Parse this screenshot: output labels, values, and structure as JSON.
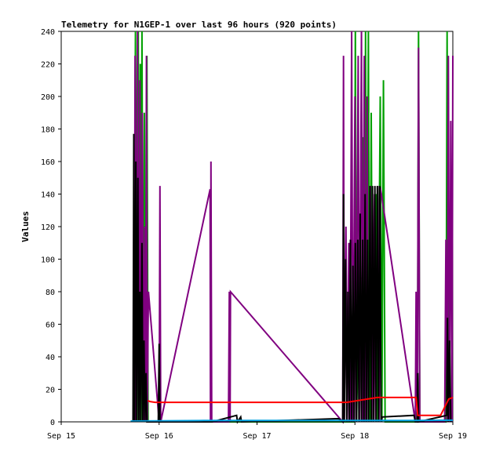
{
  "chart_data": {
    "type": "line",
    "title": "Telemetry for N1GEP-1 over last 96 hours (920 points)",
    "xlabel": "",
    "ylabel": "Values",
    "ylim": [
      0,
      240
    ],
    "yticks": [
      0,
      20,
      40,
      60,
      80,
      100,
      120,
      140,
      160,
      180,
      200,
      220,
      240
    ],
    "xlim": [
      0,
      96
    ],
    "xunit": "hours since Sep 15 00:00",
    "xticks": [
      {
        "x": 0,
        "label": "Sep 15"
      },
      {
        "x": 24,
        "label": "Sep 16"
      },
      {
        "x": 48,
        "label": "Sep 17"
      },
      {
        "x": 72,
        "label": "Sep 18"
      },
      {
        "x": 96,
        "label": "Sep 19"
      }
    ],
    "grid": false,
    "series": [
      {
        "color": "#00a000",
        "points": [
          [
            17.8,
            0
          ],
          [
            18.2,
            240
          ],
          [
            18.6,
            0
          ],
          [
            18.9,
            240
          ],
          [
            19.2,
            0
          ],
          [
            19.4,
            220
          ],
          [
            19.6,
            0
          ],
          [
            19.8,
            240
          ],
          [
            20.1,
            0
          ],
          [
            20.4,
            190
          ],
          [
            20.7,
            0
          ],
          [
            21.0,
            225
          ],
          [
            21.3,
            0
          ],
          [
            71.8,
            0
          ],
          [
            72.1,
            240
          ],
          [
            72.4,
            0
          ],
          [
            73.2,
            110
          ],
          [
            73.6,
            0
          ],
          [
            74.0,
            175
          ],
          [
            74.3,
            0
          ],
          [
            74.6,
            240
          ],
          [
            74.9,
            0
          ],
          [
            75.3,
            240
          ],
          [
            75.6,
            0
          ],
          [
            76.0,
            190
          ],
          [
            76.4,
            0
          ],
          [
            77.2,
            140
          ],
          [
            77.6,
            0
          ],
          [
            78.2,
            200
          ],
          [
            78.6,
            0
          ],
          [
            79.0,
            210
          ],
          [
            79.4,
            0
          ],
          [
            87.3,
            0
          ],
          [
            87.6,
            240
          ],
          [
            87.9,
            0
          ],
          [
            94.3,
            0
          ],
          [
            94.6,
            240
          ],
          [
            94.9,
            0
          ]
        ]
      },
      {
        "color": "#800080",
        "points": [
          [
            17.9,
            0
          ],
          [
            18.1,
            225
          ],
          [
            18.3,
            0
          ],
          [
            18.7,
            240
          ],
          [
            19.0,
            0
          ],
          [
            19.3,
            210
          ],
          [
            19.5,
            0
          ],
          [
            19.9,
            190
          ],
          [
            20.2,
            0
          ],
          [
            20.5,
            120
          ],
          [
            20.7,
            0
          ],
          [
            20.9,
            225
          ],
          [
            21.1,
            0
          ],
          [
            21.3,
            60
          ],
          [
            21.4,
            80
          ],
          [
            24.0,
            0
          ],
          [
            24.2,
            145
          ],
          [
            24.4,
            0
          ],
          [
            36.5,
            143
          ],
          [
            36.6,
            0
          ],
          [
            36.7,
            160
          ],
          [
            36.9,
            0
          ],
          [
            41.0,
            0
          ],
          [
            41.2,
            80
          ],
          [
            41.4,
            0
          ],
          [
            41.5,
            80
          ],
          [
            69.0,
            0
          ],
          [
            69.2,
            225
          ],
          [
            69.4,
            0
          ],
          [
            69.8,
            120
          ],
          [
            70.1,
            0
          ],
          [
            70.5,
            110
          ],
          [
            70.8,
            0
          ],
          [
            71.2,
            240
          ],
          [
            71.5,
            0
          ],
          [
            72.0,
            200
          ],
          [
            72.3,
            0
          ],
          [
            72.8,
            225
          ],
          [
            73.1,
            0
          ],
          [
            73.6,
            240
          ],
          [
            73.9,
            0
          ],
          [
            74.3,
            225
          ],
          [
            74.6,
            0
          ],
          [
            75.0,
            200
          ],
          [
            75.3,
            0
          ],
          [
            75.8,
            145
          ],
          [
            76.1,
            0
          ],
          [
            76.8,
            140
          ],
          [
            77.1,
            0
          ],
          [
            77.6,
            145
          ],
          [
            77.9,
            0
          ],
          [
            78.2,
            144
          ],
          [
            78.5,
            140
          ],
          [
            86.8,
            0
          ],
          [
            87.0,
            80
          ],
          [
            87.3,
            0
          ],
          [
            87.6,
            230
          ],
          [
            87.9,
            0
          ],
          [
            94.0,
            0
          ],
          [
            94.3,
            112
          ],
          [
            94.6,
            0
          ],
          [
            94.9,
            225
          ],
          [
            95.2,
            0
          ],
          [
            95.5,
            185
          ],
          [
            95.8,
            0
          ],
          [
            96.0,
            225
          ]
        ]
      },
      {
        "color": "#000000",
        "points": [
          [
            17.6,
            0
          ],
          [
            17.8,
            177
          ],
          [
            18.0,
            0
          ],
          [
            18.3,
            160
          ],
          [
            18.5,
            0
          ],
          [
            18.8,
            150
          ],
          [
            19.0,
            0
          ],
          [
            19.3,
            80
          ],
          [
            19.5,
            0
          ],
          [
            19.8,
            110
          ],
          [
            20.0,
            0
          ],
          [
            20.3,
            50
          ],
          [
            20.5,
            0
          ],
          [
            20.8,
            30
          ],
          [
            21.0,
            0
          ],
          [
            22.5,
            0
          ],
          [
            23.0,
            0
          ],
          [
            23.8,
            0
          ],
          [
            24.0,
            48
          ],
          [
            24.2,
            0
          ],
          [
            36.5,
            0
          ],
          [
            36.6,
            0
          ],
          [
            37.0,
            0
          ],
          [
            43.0,
            4
          ],
          [
            43.2,
            0
          ],
          [
            44.0,
            3
          ],
          [
            44.2,
            0
          ],
          [
            68.0,
            2
          ],
          [
            69.0,
            0
          ],
          [
            69.2,
            140
          ],
          [
            69.4,
            0
          ],
          [
            69.7,
            100
          ],
          [
            70.0,
            0
          ],
          [
            70.3,
            80
          ],
          [
            70.6,
            0
          ],
          [
            70.9,
            112
          ],
          [
            71.2,
            0
          ],
          [
            71.5,
            96
          ],
          [
            71.8,
            0
          ],
          [
            72.1,
            110
          ],
          [
            72.4,
            0
          ],
          [
            72.7,
            112
          ],
          [
            73.0,
            0
          ],
          [
            73.3,
            128
          ],
          [
            73.6,
            0
          ],
          [
            73.9,
            112
          ],
          [
            74.2,
            0
          ],
          [
            74.5,
            140
          ],
          [
            74.8,
            0
          ],
          [
            75.1,
            112
          ],
          [
            75.4,
            0
          ],
          [
            75.7,
            145
          ],
          [
            76.0,
            0
          ],
          [
            76.3,
            145
          ],
          [
            76.6,
            0
          ],
          [
            76.9,
            145
          ],
          [
            77.2,
            0
          ],
          [
            77.5,
            145
          ],
          [
            77.8,
            0
          ],
          [
            78.1,
            145
          ],
          [
            78.4,
            0
          ],
          [
            78.7,
            3
          ],
          [
            86.5,
            4
          ],
          [
            86.8,
            0
          ],
          [
            87.2,
            0
          ],
          [
            87.4,
            30
          ],
          [
            87.6,
            0
          ],
          [
            94.5,
            4
          ],
          [
            94.7,
            64
          ],
          [
            94.9,
            0
          ],
          [
            95.2,
            50
          ],
          [
            95.5,
            0
          ]
        ]
      },
      {
        "color": "#ff0000",
        "points": [
          [
            21.2,
            13
          ],
          [
            21.8,
            12.5
          ],
          [
            23.0,
            12
          ],
          [
            70.0,
            12
          ],
          [
            77.5,
            15
          ],
          [
            87.0,
            15
          ],
          [
            87.4,
            4
          ],
          [
            93.0,
            4
          ],
          [
            95.0,
            14
          ],
          [
            96.0,
            15
          ]
        ]
      },
      {
        "color": "#00a0e0",
        "points": [
          [
            17.0,
            0.5
          ],
          [
            35.0,
            0.8
          ],
          [
            45.0,
            0.8
          ],
          [
            70.0,
            0.8
          ],
          [
            86.0,
            0.8
          ],
          [
            96.0,
            1
          ]
        ]
      }
    ]
  }
}
